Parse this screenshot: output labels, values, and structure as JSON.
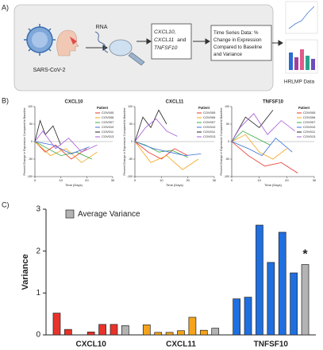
{
  "panel_labels": [
    "A)",
    "B)",
    "C)"
  ],
  "panel_a": {
    "virus_label": "SARS-CoV-2",
    "rna_label": "RNA",
    "gene_box": [
      "CXCL10,",
      "CXCL11",
      "and",
      "TNFSF10"
    ],
    "time_series_box": [
      "Time Series Data: %",
      "Change in Expression",
      "Compared to Baseline",
      "and Variance"
    ],
    "output_label": "HRLMP Data"
  },
  "chart_data": [
    {
      "type": "line",
      "title": "CXCL10",
      "x_label": "Time (Days)",
      "y_label": "Percent Change in Expression Compared to Baseline",
      "legend_title": "Patient",
      "xlim": [
        0,
        30
      ],
      "xticks": [
        0,
        10,
        20,
        30
      ],
      "ylim": [
        -100,
        100
      ],
      "yticks": [
        -100,
        -50,
        0,
        50,
        100
      ],
      "series": [
        {
          "name": "COV005",
          "color": "#e8332a",
          "x": [
            0,
            4,
            8,
            14,
            20
          ],
          "values": [
            0,
            -30,
            -10,
            -50,
            -20
          ]
        },
        {
          "name": "COV006",
          "color": "#f5a31a",
          "x": [
            0,
            6,
            12,
            18,
            24
          ],
          "values": [
            0,
            -40,
            -20,
            -60,
            -30
          ]
        },
        {
          "name": "COV007",
          "color": "#3aa843",
          "x": [
            0,
            5,
            10,
            16,
            22
          ],
          "values": [
            0,
            -20,
            -40,
            -30,
            -50
          ]
        },
        {
          "name": "COV010",
          "color": "#3b6fd8",
          "x": [
            0,
            7,
            14,
            21
          ],
          "values": [
            0,
            -10,
            -35,
            -15
          ]
        },
        {
          "name": "COV011",
          "color": "#222222",
          "x": [
            0,
            2,
            4,
            7,
            10
          ],
          "values": [
            0,
            60,
            20,
            45,
            -10
          ]
        },
        {
          "name": "COV013",
          "color": "#a55bd6",
          "x": [
            0,
            3,
            8,
            13,
            18,
            24
          ],
          "values": [
            0,
            30,
            -20,
            10,
            -30,
            -10
          ]
        }
      ]
    },
    {
      "type": "line",
      "title": "CXCL11",
      "x_label": "Time (Days)",
      "y_label": "Percent Change in Expression Compared to Baseline",
      "legend_title": "Patient",
      "xlim": [
        0,
        30
      ],
      "xticks": [
        0,
        10,
        20,
        30
      ],
      "ylim": [
        -100,
        100
      ],
      "yticks": [
        -100,
        -50,
        0,
        50,
        100
      ],
      "series": [
        {
          "name": "COV005",
          "color": "#e8332a",
          "x": [
            0,
            5,
            10,
            15,
            20
          ],
          "values": [
            0,
            -30,
            -50,
            -20,
            -40
          ]
        },
        {
          "name": "COV006",
          "color": "#f5a31a",
          "x": [
            0,
            6,
            12,
            18,
            24
          ],
          "values": [
            0,
            -60,
            -40,
            -80,
            -50
          ]
        },
        {
          "name": "COV007",
          "color": "#3aa843",
          "x": [
            0,
            4,
            9,
            14,
            20
          ],
          "values": [
            0,
            -10,
            -30,
            -25,
            -45
          ]
        },
        {
          "name": "COV010",
          "color": "#3b6fd8",
          "x": [
            0,
            7,
            13,
            19,
            25
          ],
          "values": [
            0,
            -20,
            -30,
            -40,
            -35
          ]
        },
        {
          "name": "COV011",
          "color": "#222222",
          "x": [
            0,
            3,
            6,
            9,
            12
          ],
          "values": [
            0,
            70,
            40,
            90,
            50
          ]
        },
        {
          "name": "COV013",
          "color": "#a55bd6",
          "x": [
            0,
            4,
            8,
            12,
            16
          ],
          "values": [
            0,
            40,
            65,
            30,
            15
          ]
        }
      ]
    },
    {
      "type": "line",
      "title": "TNFSF10",
      "x_label": "Time (Days)",
      "y_label": "Percent Change in Expression Compared to Baseline",
      "legend_title": "Patient",
      "xlim": [
        0,
        30
      ],
      "xticks": [
        0,
        10,
        20,
        30
      ],
      "ylim": [
        -100,
        100
      ],
      "yticks": [
        -100,
        -50,
        0,
        50,
        100
      ],
      "series": [
        {
          "name": "COV005",
          "color": "#e8332a",
          "x": [
            0,
            6,
            12,
            18,
            24
          ],
          "values": [
            0,
            -40,
            -70,
            -60,
            -90
          ]
        },
        {
          "name": "COV006",
          "color": "#f5a31a",
          "x": [
            0,
            5,
            10,
            15,
            20
          ],
          "values": [
            0,
            20,
            -30,
            -50,
            -20
          ]
        },
        {
          "name": "COV007",
          "color": "#3aa843",
          "x": [
            0,
            4,
            9,
            14
          ],
          "values": [
            0,
            30,
            10,
            -10
          ]
        },
        {
          "name": "COV010",
          "color": "#3b6fd8",
          "x": [
            0,
            6,
            11,
            16,
            22
          ],
          "values": [
            0,
            -20,
            -40,
            10,
            -30
          ]
        },
        {
          "name": "COV011",
          "color": "#222222",
          "x": [
            0,
            5,
            10,
            15
          ],
          "values": [
            0,
            70,
            40,
            90
          ]
        },
        {
          "name": "COV013",
          "color": "#a55bd6",
          "x": [
            0,
            3,
            8,
            13,
            18,
            23
          ],
          "values": [
            0,
            40,
            80,
            20,
            60,
            30
          ]
        }
      ]
    },
    {
      "type": "bar",
      "y_label": "Variance",
      "ylim": [
        0,
        3
      ],
      "yticks": [
        0,
        1,
        2,
        3
      ],
      "categories": [
        "CXCL10",
        "CXCL11",
        "TNFSF10"
      ],
      "groups": [
        {
          "color": "#e8332a",
          "values": [
            0.52,
            0.13,
            0,
            0.07,
            0.25,
            0.25
          ]
        },
        {
          "color": "#f5a31a",
          "values": [
            0.24,
            0.06,
            0.06,
            0.1,
            0.42,
            0.11
          ]
        },
        {
          "color": "#1f6fe0",
          "values": [
            0.86,
            0.9,
            2.62,
            1.73,
            2.45,
            1.48
          ]
        }
      ],
      "average": {
        "name": "Average Variance",
        "color": "#b3b3b3",
        "values": [
          0.22,
          0.16,
          1.68
        ]
      },
      "annotation": "*"
    }
  ]
}
